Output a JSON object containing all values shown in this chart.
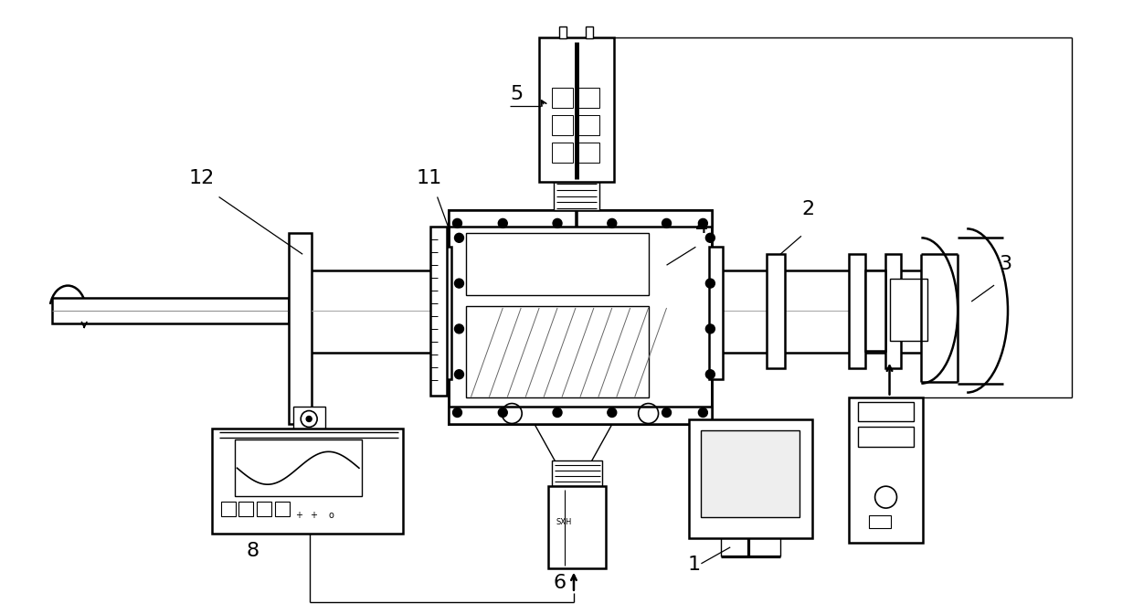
{
  "bg_color": "#ffffff",
  "line_color": "#000000",
  "fig_width": 12.4,
  "fig_height": 6.72,
  "fontsize": 16,
  "lw_main": 1.8,
  "lw_thin": 1.0
}
